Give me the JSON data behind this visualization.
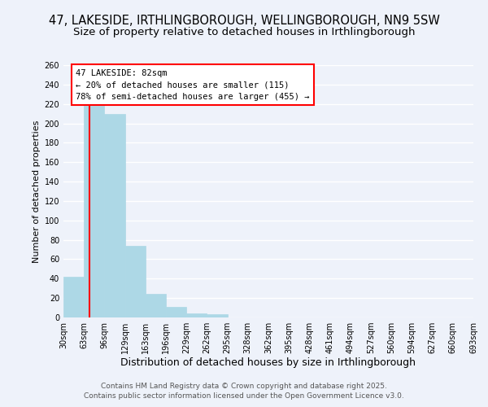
{
  "title": "47, LAKESIDE, IRTHLINGBOROUGH, WELLINGBOROUGH, NN9 5SW",
  "subtitle": "Size of property relative to detached houses in Irthlingborough",
  "xlabel": "Distribution of detached houses by size in Irthlingborough",
  "ylabel": "Number of detached properties",
  "bar_values": [
    42,
    218,
    210,
    74,
    24,
    11,
    4,
    3,
    0,
    0,
    0,
    0,
    0,
    0,
    0,
    0,
    0,
    0,
    0,
    0
  ],
  "bar_color": "#add8e6",
  "bar_edge_color": "#add8e6",
  "categories": [
    "30sqm",
    "63sqm",
    "96sqm",
    "129sqm",
    "163sqm",
    "196sqm",
    "229sqm",
    "262sqm",
    "295sqm",
    "328sqm",
    "362sqm",
    "395sqm",
    "428sqm",
    "461sqm",
    "494sqm",
    "527sqm",
    "560sqm",
    "594sqm",
    "627sqm",
    "660sqm",
    "693sqm"
  ],
  "ylim": [
    0,
    260
  ],
  "yticks": [
    0,
    20,
    40,
    60,
    80,
    100,
    120,
    140,
    160,
    180,
    200,
    220,
    240,
    260
  ],
  "red_line_x": 1.27,
  "annotation_title": "47 LAKESIDE: 82sqm",
  "annotation_line1": "← 20% of detached houses are smaller (115)",
  "annotation_line2": "78% of semi-detached houses are larger (455) →",
  "footer1": "Contains HM Land Registry data © Crown copyright and database right 2025.",
  "footer2": "Contains public sector information licensed under the Open Government Licence v3.0.",
  "background_color": "#eef2fa",
  "grid_color": "#ffffff",
  "title_fontsize": 10.5,
  "subtitle_fontsize": 9.5,
  "xlabel_fontsize": 9,
  "ylabel_fontsize": 8,
  "tick_fontsize": 7,
  "annotation_fontsize": 7.5,
  "footer_fontsize": 6.5
}
